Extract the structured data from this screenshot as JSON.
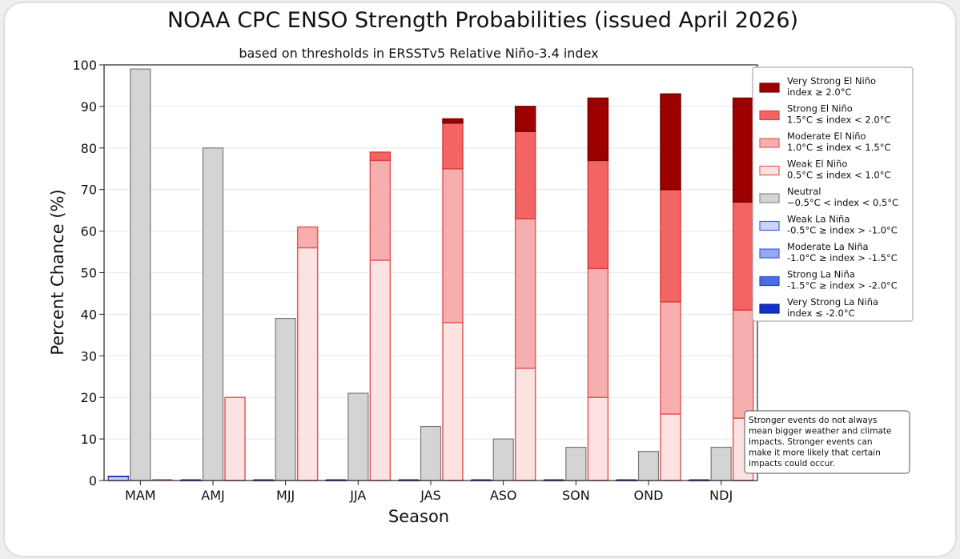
{
  "chart_data": {
    "type": "bar",
    "title": "NOAA CPC ENSO Strength Probabilities (issued April 2026)",
    "subtitle": "based on thresholds in ERSSTv5 Relative Niño-3.4 index",
    "xlabel": "Season",
    "ylabel": "Percent Chance (%)",
    "ylim": [
      0,
      100
    ],
    "yticks": [
      "0",
      "10",
      "20",
      "30",
      "40",
      "50",
      "60",
      "70",
      "80",
      "90",
      "100"
    ],
    "grid": true,
    "legend_position": "right",
    "categories": [
      "MAM",
      "AMJ",
      "MJJ",
      "JJA",
      "JAS",
      "ASO",
      "SON",
      "OND",
      "NDJ"
    ],
    "neutral": {
      "values": [
        99,
        80,
        39,
        21,
        13,
        10,
        8,
        7,
        8
      ],
      "color": "#d4d4d4"
    },
    "la_nina_stack": [
      {
        "name_line1": "Weak La Niña",
        "name_line2": "-0.5°C ≥ index > -1.0°C",
        "values": [
          1,
          0,
          0,
          0,
          0,
          0,
          0,
          0,
          0
        ],
        "color": "#c9d4ff"
      },
      {
        "name_line1": "Moderate La Niña",
        "name_line2": "-1.0°C ≥ index > -1.5°C",
        "values": [
          0,
          0,
          0,
          0,
          0,
          0,
          0,
          0,
          0
        ],
        "color": "#93a9f4"
      },
      {
        "name_line1": "Strong La Niña",
        "name_line2": "-1.5°C ≥ index > -2.0°C",
        "values": [
          0,
          0,
          0,
          0,
          0,
          0,
          0,
          0,
          0
        ],
        "color": "#4a6fe5"
      },
      {
        "name_line1": "Very Strong La Niña",
        "name_line2": "index ≤ -2.0°C",
        "values": [
          0,
          0,
          0,
          0,
          0,
          0,
          0,
          0,
          0
        ],
        "color": "#1233c9"
      }
    ],
    "el_nino_stack": [
      {
        "name_line1": "Weak El Niño",
        "name_line2": "0.5°C ≤ index < 1.0°C",
        "values": [
          0,
          20,
          56,
          53,
          38,
          27,
          20,
          16,
          15
        ],
        "color": "#fde2e2"
      },
      {
        "name_line1": "Moderate El Niño",
        "name_line2": "1.0°C ≤ index < 1.5°C",
        "values": [
          0,
          0,
          5,
          24,
          37,
          36,
          31,
          27,
          26
        ],
        "color": "#f7aeae"
      },
      {
        "name_line1": "Strong El Niño",
        "name_line2": "1.5°C ≤ index < 2.0°C",
        "values": [
          0,
          0,
          0,
          2,
          11,
          21,
          26,
          27,
          26
        ],
        "color": "#f36464"
      },
      {
        "name_line1": "Very Strong El Niño",
        "name_line2": "index ≥ 2.0°C",
        "values": [
          0,
          0,
          0,
          0,
          1,
          6,
          15,
          23,
          25
        ],
        "color": "#9c0000"
      }
    ],
    "legend": [
      {
        "line1": "Very Strong El Niño",
        "line2": "index ≥ 2.0°C",
        "color": "#9c0000",
        "stroke": "#7a0000"
      },
      {
        "line1": "Strong El Niño",
        "line2": "1.5°C ≤ index < 2.0°C",
        "color": "#f36464",
        "stroke": "#d94040"
      },
      {
        "line1": "Moderate El Niño",
        "line2": "1.0°C ≤ index < 1.5°C",
        "color": "#f7aeae",
        "stroke": "#e55a5a"
      },
      {
        "line1": "Weak El Niño",
        "line2": "0.5°C ≤ index < 1.0°C",
        "color": "#fde2e2",
        "stroke": "#e55a5a"
      },
      {
        "line1": "Neutral",
        "line2": "−0.5°C < index < 0.5°C",
        "color": "#d4d4d4",
        "stroke": "#8a8a8a"
      },
      {
        "line1": "Weak La Niña",
        "line2": "-0.5°C ≥ index > -1.0°C",
        "color": "#c9d4ff",
        "stroke": "#4a5fd9"
      },
      {
        "line1": "Moderate La Niña",
        "line2": "-1.0°C ≥ index > -1.5°C",
        "color": "#93a9f4",
        "stroke": "#4a5fd9"
      },
      {
        "line1": "Strong La Niña",
        "line2": "-1.5°C ≥ index > -2.0°C",
        "color": "#4a6fe5",
        "stroke": "#2c46c0"
      },
      {
        "line1": "Very Strong La Niña",
        "line2": "index ≤ -2.0°C",
        "color": "#1233c9",
        "stroke": "#0a1f8f"
      }
    ],
    "note_lines": [
      "Stronger events do not always",
      "mean bigger weather and climate",
      "impacts. Stronger events can",
      "make it more likely that certain",
      "impacts could occur."
    ]
  }
}
